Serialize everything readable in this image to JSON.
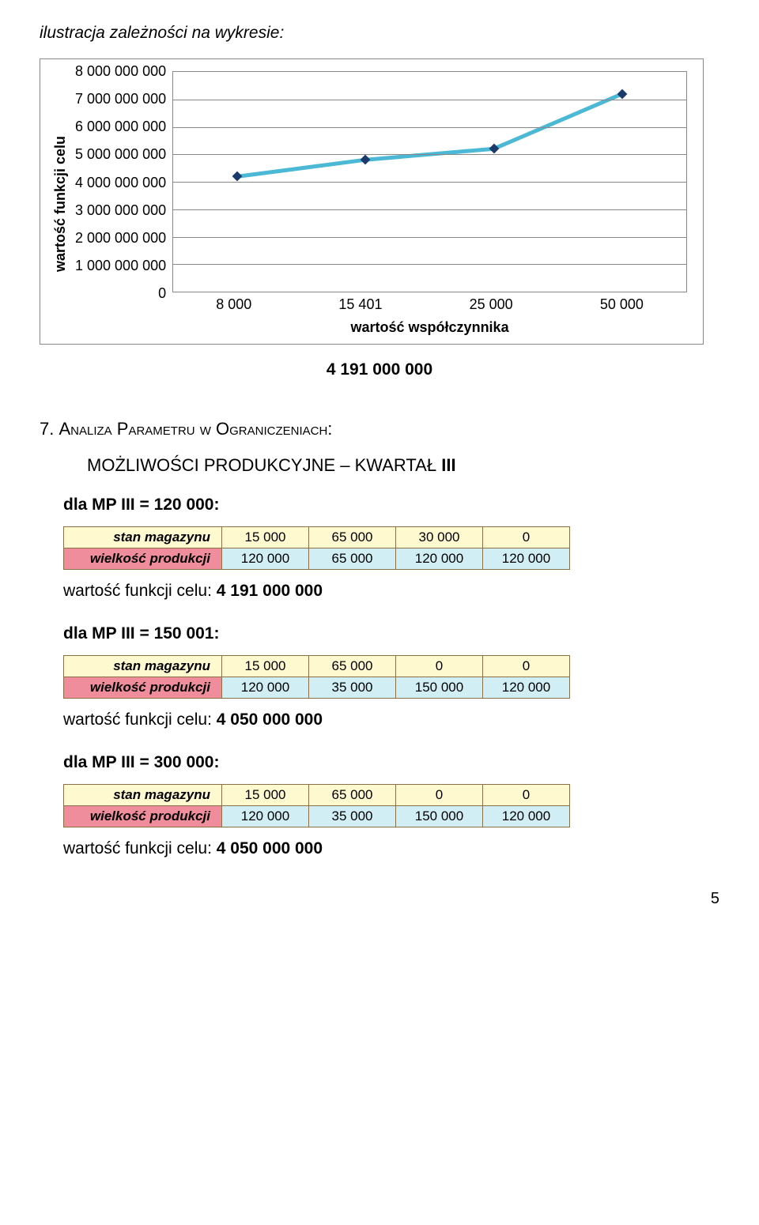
{
  "page_title": "ilustracja zależności na wykresie:",
  "chart": {
    "type": "line",
    "y_label": "wartość funkcji celu",
    "x_label": "wartość współczynnika",
    "y_ticks": [
      "8 000 000 000",
      "7 000 000 000",
      "6 000 000 000",
      "5 000 000 000",
      "4 000 000 000",
      "3 000 000 000",
      "2 000 000 000",
      "1 000 000 000",
      "0"
    ],
    "x_ticks": [
      "8 000",
      "15 401",
      "25 000",
      "50 000"
    ],
    "ylim_max": 8000000000,
    "ylim_min": 0,
    "series_values": [
      4191000000,
      4800000000,
      5200000000,
      7200000000
    ],
    "line_color": "#4bb8d6",
    "line_width": 5,
    "marker_color": "#1b3a6b",
    "grid_color": "#888888",
    "background_color": "#ffffff"
  },
  "central_value": "4 191 000 000",
  "section_number": "7.",
  "section_title": "Analiza Parametru w Ograniczeniach:",
  "subheading_prefix": "MOŻLIWOŚCI PRODUKCYJNE – KWARTAŁ",
  "subheading_roman": "III",
  "cases": [
    {
      "param_label": "dla MP III  = 120 000:",
      "row_stan_label": "stan magazynu",
      "row_stan": [
        "15 000",
        "65 000",
        "30 000",
        "0"
      ],
      "row_wp_label": "wielkość produkcji",
      "row_wp": [
        "120 000",
        "65 000",
        "120 000",
        "120 000"
      ],
      "value_prefix": "wartość funkcji celu:",
      "value_bold": "4 191 000 000"
    },
    {
      "param_label": "dla MP III  = 150 001:",
      "row_stan_label": "stan magazynu",
      "row_stan": [
        "15 000",
        "65 000",
        "0",
        "0"
      ],
      "row_wp_label": "wielkość produkcji",
      "row_wp": [
        "120 000",
        "35 000",
        "150 000",
        "120 000"
      ],
      "value_prefix": "wartość funkcji celu:",
      "value_bold": "4 050 000 000"
    },
    {
      "param_label": "dla MP III  = 300 000:",
      "row_stan_label": "stan magazynu",
      "row_stan": [
        "15 000",
        "65 000",
        "0",
        "0"
      ],
      "row_wp_label": "wielkość produkcji",
      "row_wp": [
        "120 000",
        "35 000",
        "150 000",
        "120 000"
      ],
      "value_prefix": "wartość funkcji celu:",
      "value_bold": "4 050 000 000"
    }
  ],
  "page_number": "5"
}
